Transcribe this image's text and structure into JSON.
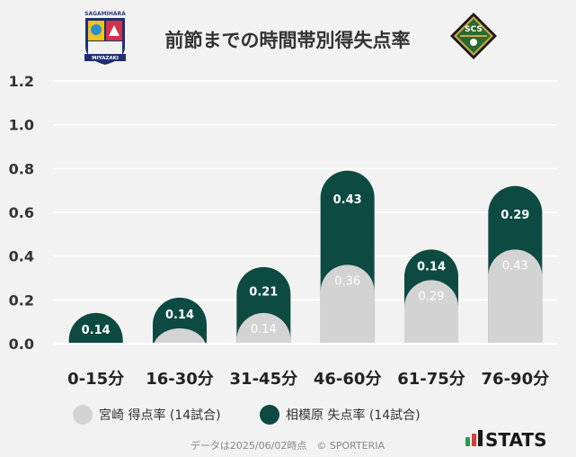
{
  "title": "前節までの時間帯別得失点率",
  "logos": {
    "home": {
      "text_top": "SAGAMIHARA",
      "text_bottom": "MIYAZAKI"
    },
    "away": {
      "text": "SCS"
    }
  },
  "chart_data": {
    "type": "bar",
    "stacked": true,
    "categories": [
      "0-15分",
      "16-30分",
      "31-45分",
      "46-60分",
      "61-75分",
      "76-90分"
    ],
    "series": [
      {
        "name": "宮崎 得点率 (14試合)",
        "color": "#d3d3d3",
        "label_color": "#ffffff",
        "values": [
          0,
          0.07,
          0.14,
          0.36,
          0.29,
          0.43
        ],
        "labels": [
          "",
          "",
          "0.14",
          "0.36",
          "0.29",
          "0.43"
        ]
      },
      {
        "name": "相模原 失点率 (14試合)",
        "color": "#0c4a42",
        "label_color": "#ffffff",
        "values": [
          0.14,
          0.14,
          0.21,
          0.43,
          0.14,
          0.29
        ],
        "labels": [
          "0.14",
          "0.14",
          "0.21",
          "0.43",
          "0.14",
          "0.29"
        ]
      }
    ],
    "y_ticks": [
      "0.0",
      "0.2",
      "0.4",
      "0.6",
      "0.8",
      "1.0",
      "1.2"
    ],
    "ylim": [
      0,
      1.2
    ],
    "grid": true,
    "legend_position": "bottom"
  },
  "footer": {
    "note": "データは2025/06/02時点　© SPORTERIA",
    "brand": "STATS"
  }
}
